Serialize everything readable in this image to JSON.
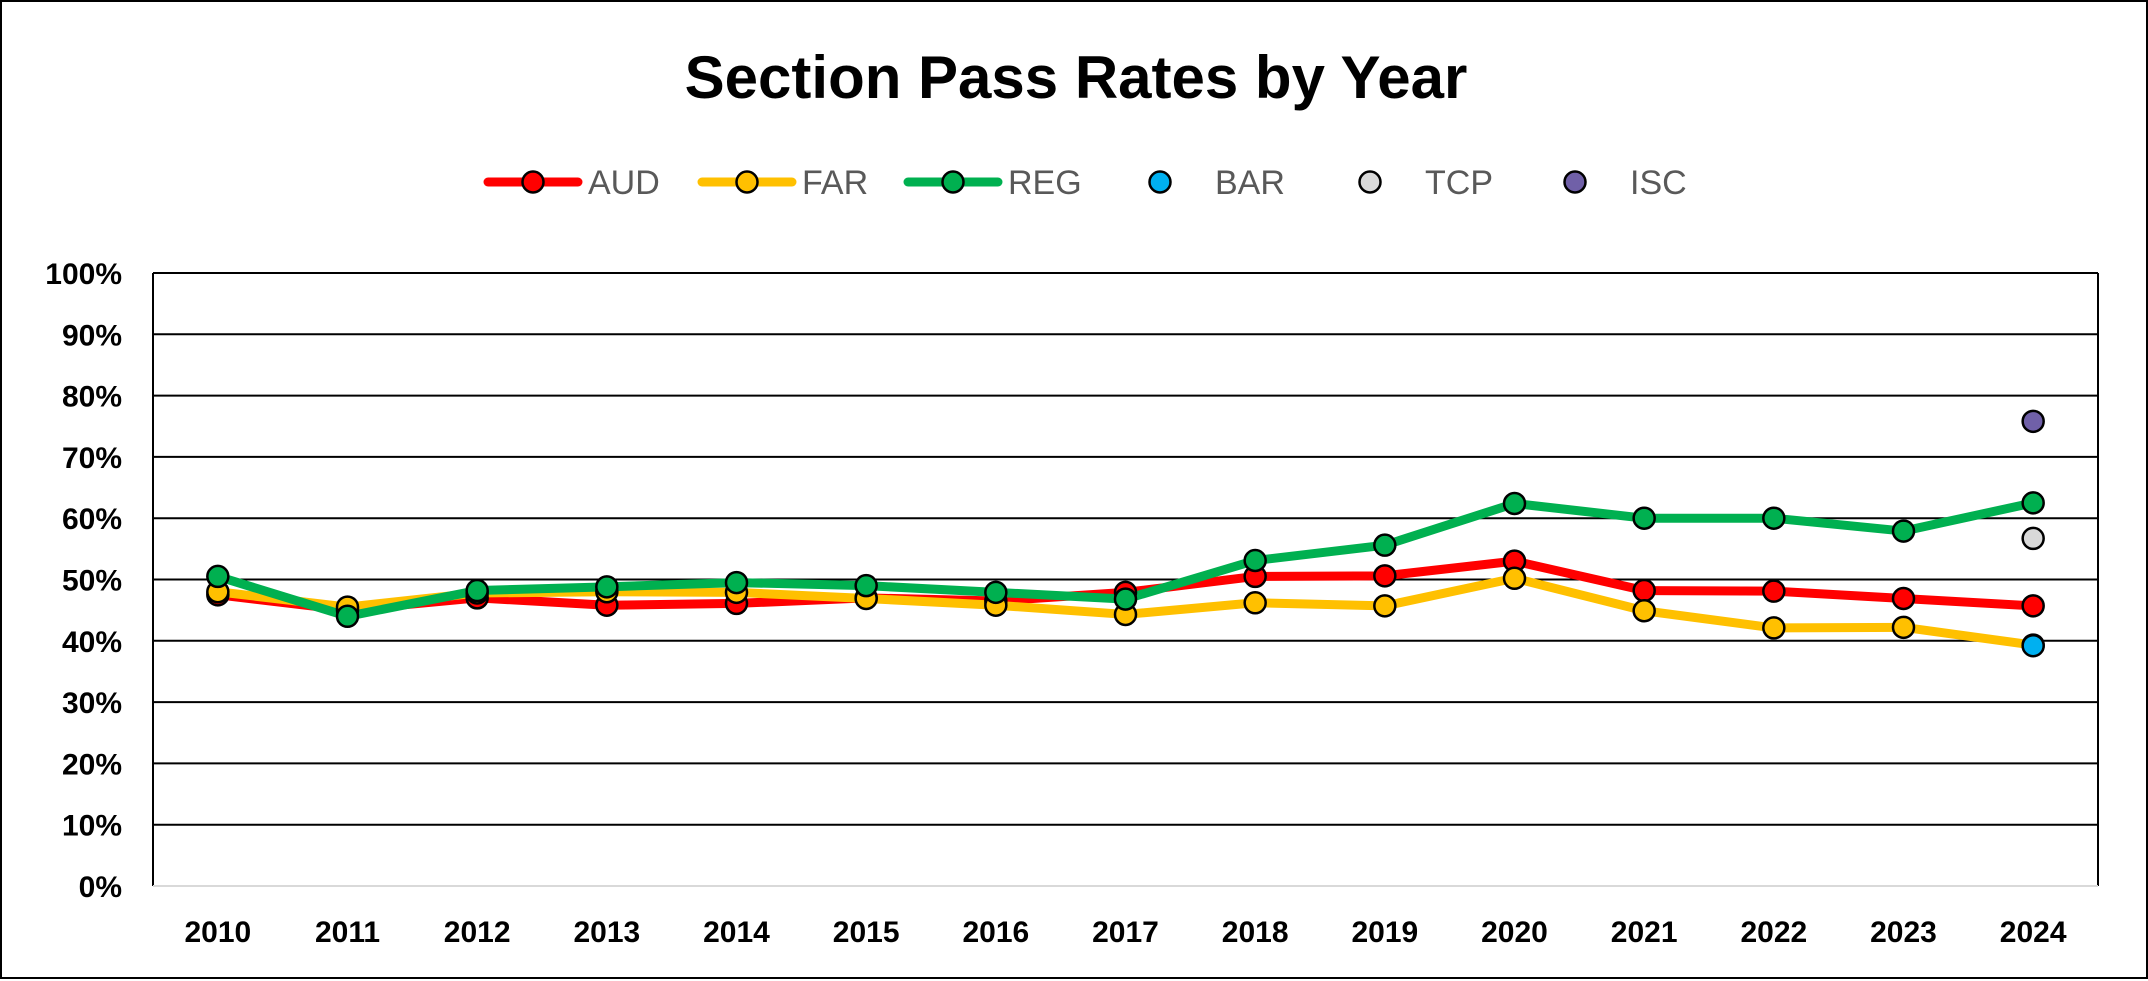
{
  "chart_data": {
    "type": "line",
    "title": "Section Pass Rates by Year",
    "xlabel": "",
    "ylabel": "",
    "ylim": [
      0,
      100
    ],
    "y_tick_format": "percent",
    "grid": true,
    "legend_position": "top",
    "categories": [
      "2010",
      "2011",
      "2012",
      "2013",
      "2014",
      "2015",
      "2016",
      "2017",
      "2018",
      "2019",
      "2020",
      "2021",
      "2022",
      "2023",
      "2024"
    ],
    "y_ticks": [
      "0%",
      "10%",
      "20%",
      "30%",
      "40%",
      "50%",
      "60%",
      "70%",
      "80%",
      "90%",
      "100%"
    ],
    "series": [
      {
        "name": "AUD",
        "color": "#ff0000",
        "line": true,
        "values": [
          47.5,
          45.0,
          47.0,
          45.8,
          46.1,
          47.0,
          46.5,
          47.9,
          50.5,
          50.6,
          53.0,
          48.2,
          48.1,
          46.9,
          45.7
        ]
      },
      {
        "name": "FAR",
        "color": "#ffc000",
        "line": true,
        "values": [
          48.0,
          45.5,
          47.8,
          48.0,
          47.9,
          46.9,
          45.8,
          44.3,
          46.2,
          45.7,
          50.2,
          44.9,
          42.1,
          42.2,
          39.3
        ]
      },
      {
        "name": "REG",
        "color": "#00b050",
        "line": true,
        "values": [
          50.5,
          44.0,
          48.2,
          48.8,
          49.5,
          49.0,
          47.9,
          46.8,
          53.1,
          55.6,
          62.4,
          60.0,
          60.0,
          57.9,
          62.5
        ]
      },
      {
        "name": "BAR",
        "color": "#00b0f0",
        "line": false,
        "values": [
          null,
          null,
          null,
          null,
          null,
          null,
          null,
          null,
          null,
          null,
          null,
          null,
          null,
          null,
          39.2
        ]
      },
      {
        "name": "TCP",
        "color": "#d9d9d9",
        "line": false,
        "values": [
          null,
          null,
          null,
          null,
          null,
          null,
          null,
          null,
          null,
          null,
          null,
          null,
          null,
          null,
          56.7
        ]
      },
      {
        "name": "ISC",
        "color": "#7060a8",
        "line": false,
        "values": [
          null,
          null,
          null,
          null,
          null,
          null,
          null,
          null,
          null,
          null,
          null,
          null,
          null,
          null,
          75.8
        ]
      }
    ]
  }
}
